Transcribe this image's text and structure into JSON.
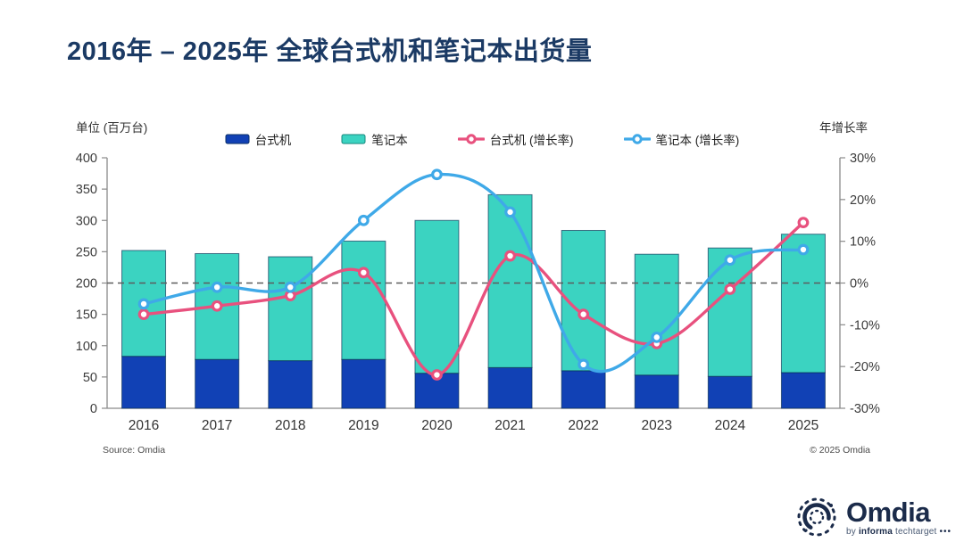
{
  "header": {
    "title": "2016年 – 2025年 全球台式机和笔记本出货量"
  },
  "axes": {
    "left_caption": "单位 (百万台)",
    "right_caption": "年增长率"
  },
  "legend": {
    "items": [
      {
        "label": "台式机",
        "type": "bar",
        "color": "#1141b5",
        "border": "#0a2f66"
      },
      {
        "label": "笔记本",
        "type": "bar",
        "color": "#3bd3c1",
        "border": "#16877c"
      },
      {
        "label": "台式机 (增长率)",
        "type": "line",
        "color": "#e8517e"
      },
      {
        "label": "笔记本 (增长率)",
        "type": "line",
        "color": "#3fa9e8"
      }
    ]
  },
  "footer": {
    "source": "Source: Omdia",
    "copyright": "© 2025 Omdia"
  },
  "logo": {
    "name": "Omdia",
    "by": "by",
    "informa": "informa",
    "techtarget": "techtarget",
    "dots": "•••"
  },
  "chart_data": {
    "type": "bar+line (stacked bars, dual axis)",
    "categories": [
      "2016",
      "2017",
      "2018",
      "2019",
      "2020",
      "2021",
      "2022",
      "2023",
      "2024",
      "2025"
    ],
    "bar_series": [
      {
        "name": "台式机",
        "color": "#1141b5",
        "border": "#0a2f66",
        "values": [
          83,
          78,
          76,
          78,
          56,
          65,
          60,
          53,
          51,
          57
        ]
      },
      {
        "name": "笔记本",
        "color": "#3bd3c1",
        "border": "#0d3a5c",
        "values": [
          169,
          169,
          166,
          189,
          244,
          276,
          224,
          193,
          205,
          221
        ]
      }
    ],
    "line_series": [
      {
        "name": "台式机 (增长率)",
        "color": "#e8517e",
        "values": [
          -7.5,
          -5.5,
          -3,
          2.5,
          -22,
          6.5,
          -7.5,
          -14.5,
          -1.5,
          14.5
        ]
      },
      {
        "name": "笔记本 (增长率)",
        "color": "#3fa9e8",
        "values": [
          -5,
          -1,
          -1,
          15,
          26,
          17,
          -19.5,
          -13,
          5.5,
          8
        ]
      }
    ],
    "left_axis": {
      "min": 0,
      "max": 400,
      "tick_values": [
        0,
        50,
        100,
        150,
        200,
        250,
        300,
        350,
        400
      ],
      "tick_labels": [
        "0",
        "50",
        "100",
        "150",
        "200",
        "250",
        "300",
        "350",
        "400"
      ]
    },
    "right_axis": {
      "min": -30,
      "max": 30,
      "tick_values": [
        -30,
        -20,
        -10,
        0,
        10,
        20,
        30
      ],
      "tick_labels": [
        "-30%",
        "-20%",
        "-10%",
        "0%",
        "10%",
        "20%",
        "30%"
      ]
    },
    "zero_dashed_line": true,
    "legend_position": "top-center",
    "grid": false
  }
}
